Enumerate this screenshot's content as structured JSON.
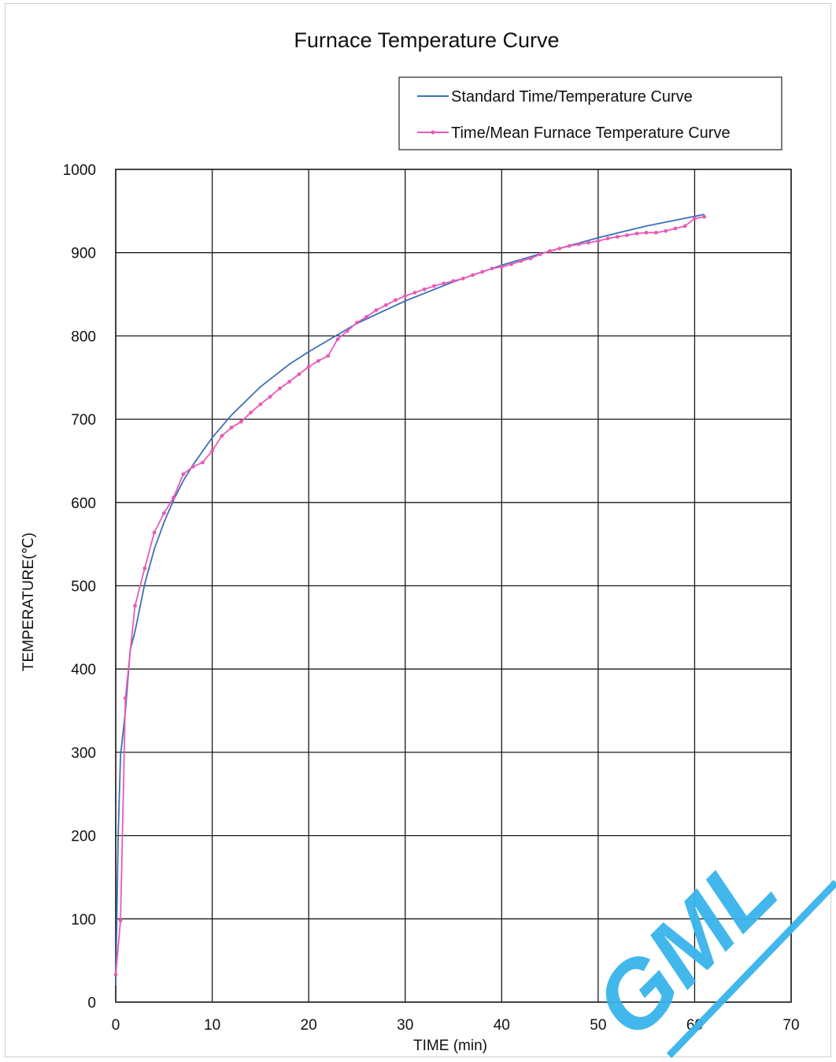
{
  "chart_data": {
    "type": "line",
    "title": "Furnace Temperature Curve",
    "xlabel": "TIME (min)",
    "ylabel": "TEMPERATURE(℃)",
    "xlim": [
      0,
      70
    ],
    "ylim": [
      0,
      1000
    ],
    "x_ticks": [
      "0",
      "10",
      "20",
      "30",
      "40",
      "50",
      "60",
      "70"
    ],
    "y_ticks": [
      "0",
      "100",
      "200",
      "300",
      "400",
      "500",
      "600",
      "700",
      "800",
      "900",
      "1000"
    ],
    "grid": true,
    "legend_position": "top-right",
    "series": [
      {
        "name": "Standard Time/Temperature Curve",
        "color": "#3d6fb6",
        "marker": "none",
        "x": [
          0,
          0.25,
          0.5,
          1,
          1.5,
          2,
          3,
          4,
          5,
          6,
          7,
          8,
          10,
          12,
          15,
          18,
          20,
          25,
          30,
          35,
          40,
          45,
          50,
          55,
          61
        ],
        "y": [
          20,
          200,
          296,
          349,
          423,
          445,
          502,
          544,
          576,
          603,
          626,
          645,
          678,
          705,
          739,
          766,
          781,
          815,
          842,
          865,
          885,
          902,
          918,
          932,
          946
        ]
      },
      {
        "name": "Time/Mean Furnace Temperature Curve",
        "color": "#e85ab7",
        "marker": "dot",
        "x": [
          0,
          0.5,
          1,
          2,
          3,
          4,
          5,
          6,
          7,
          8,
          9,
          10,
          11,
          12,
          13,
          14,
          15,
          16,
          17,
          18,
          19,
          20,
          21,
          22,
          23,
          24,
          25,
          26,
          27,
          28,
          29,
          30,
          31,
          32,
          33,
          34,
          35,
          36,
          37,
          38,
          39,
          40,
          41,
          42,
          43,
          44,
          45,
          46,
          47,
          48,
          49,
          50,
          51,
          52,
          53,
          54,
          55,
          56,
          57,
          58,
          59,
          60,
          61
        ],
        "y": [
          33,
          98,
          365,
          476,
          521,
          564,
          587,
          606,
          634,
          643,
          648,
          662,
          680,
          690,
          697,
          708,
          718,
          727,
          737,
          745,
          754,
          763,
          770,
          776,
          796,
          806,
          816,
          823,
          831,
          837,
          843,
          848,
          852,
          856,
          860,
          863,
          866,
          869,
          873,
          877,
          881,
          883,
          886,
          890,
          893,
          898,
          902,
          905,
          908,
          910,
          912,
          914,
          917,
          919,
          921,
          923,
          924,
          924,
          926,
          929,
          932,
          941,
          943
        ]
      }
    ]
  },
  "watermark": {
    "text": "GML",
    "color": "#38b4ec"
  }
}
